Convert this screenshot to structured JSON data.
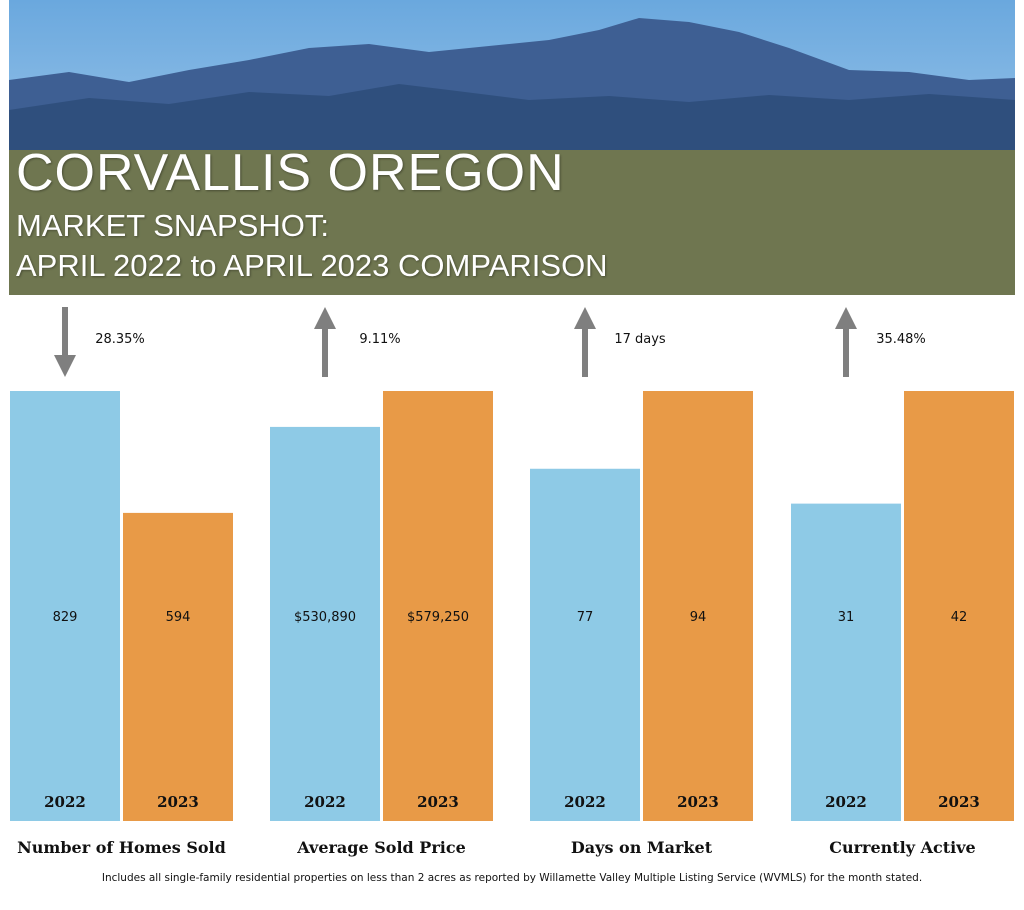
{
  "header": {
    "title": "CORVALLIS OREGON",
    "subtitle_1": "MARKET SNAPSHOT:",
    "subtitle_2": "APRIL 2022 to APRIL 2023 COMPARISON"
  },
  "colors": {
    "series_2022": "#8ecae6",
    "series_2023": "#e89a47",
    "arrow": "#7f7f7f",
    "sky_top": "#6aa8de",
    "sky_bottom": "#bcd9f0",
    "mountain_far": "#3e5f93",
    "mountain_near": "#2f4f7d",
    "city": "#6f7650"
  },
  "chart_data": [
    {
      "type": "bar",
      "category": "Number of Homes Sold",
      "categories": [
        "2022",
        "2023"
      ],
      "values": [
        829,
        594
      ],
      "labels": [
        "829",
        "594"
      ],
      "change": {
        "direction": "down",
        "text": "28.35%"
      }
    },
    {
      "type": "bar",
      "category": "Average Sold Price",
      "categories": [
        "2022",
        "2023"
      ],
      "values": [
        530890,
        579250
      ],
      "labels": [
        "$530,890",
        "$579,250"
      ],
      "change": {
        "direction": "up",
        "text": "9.11%"
      }
    },
    {
      "type": "bar",
      "category": "Days on Market",
      "categories": [
        "2022",
        "2023"
      ],
      "values": [
        77,
        94
      ],
      "labels": [
        "77",
        "94"
      ],
      "change": {
        "direction": "up",
        "text": "17 days"
      }
    },
    {
      "type": "bar",
      "category": "Currently Active",
      "categories": [
        "2022",
        "2023"
      ],
      "values": [
        31,
        42
      ],
      "labels": [
        "31",
        "42"
      ],
      "change": {
        "direction": "up",
        "text": "35.48%"
      }
    }
  ],
  "footnote": "Includes all single-family residential properties on less than 2 acres as reported by Willamette Valley Multiple Listing Service (WVMLS) for the month stated."
}
